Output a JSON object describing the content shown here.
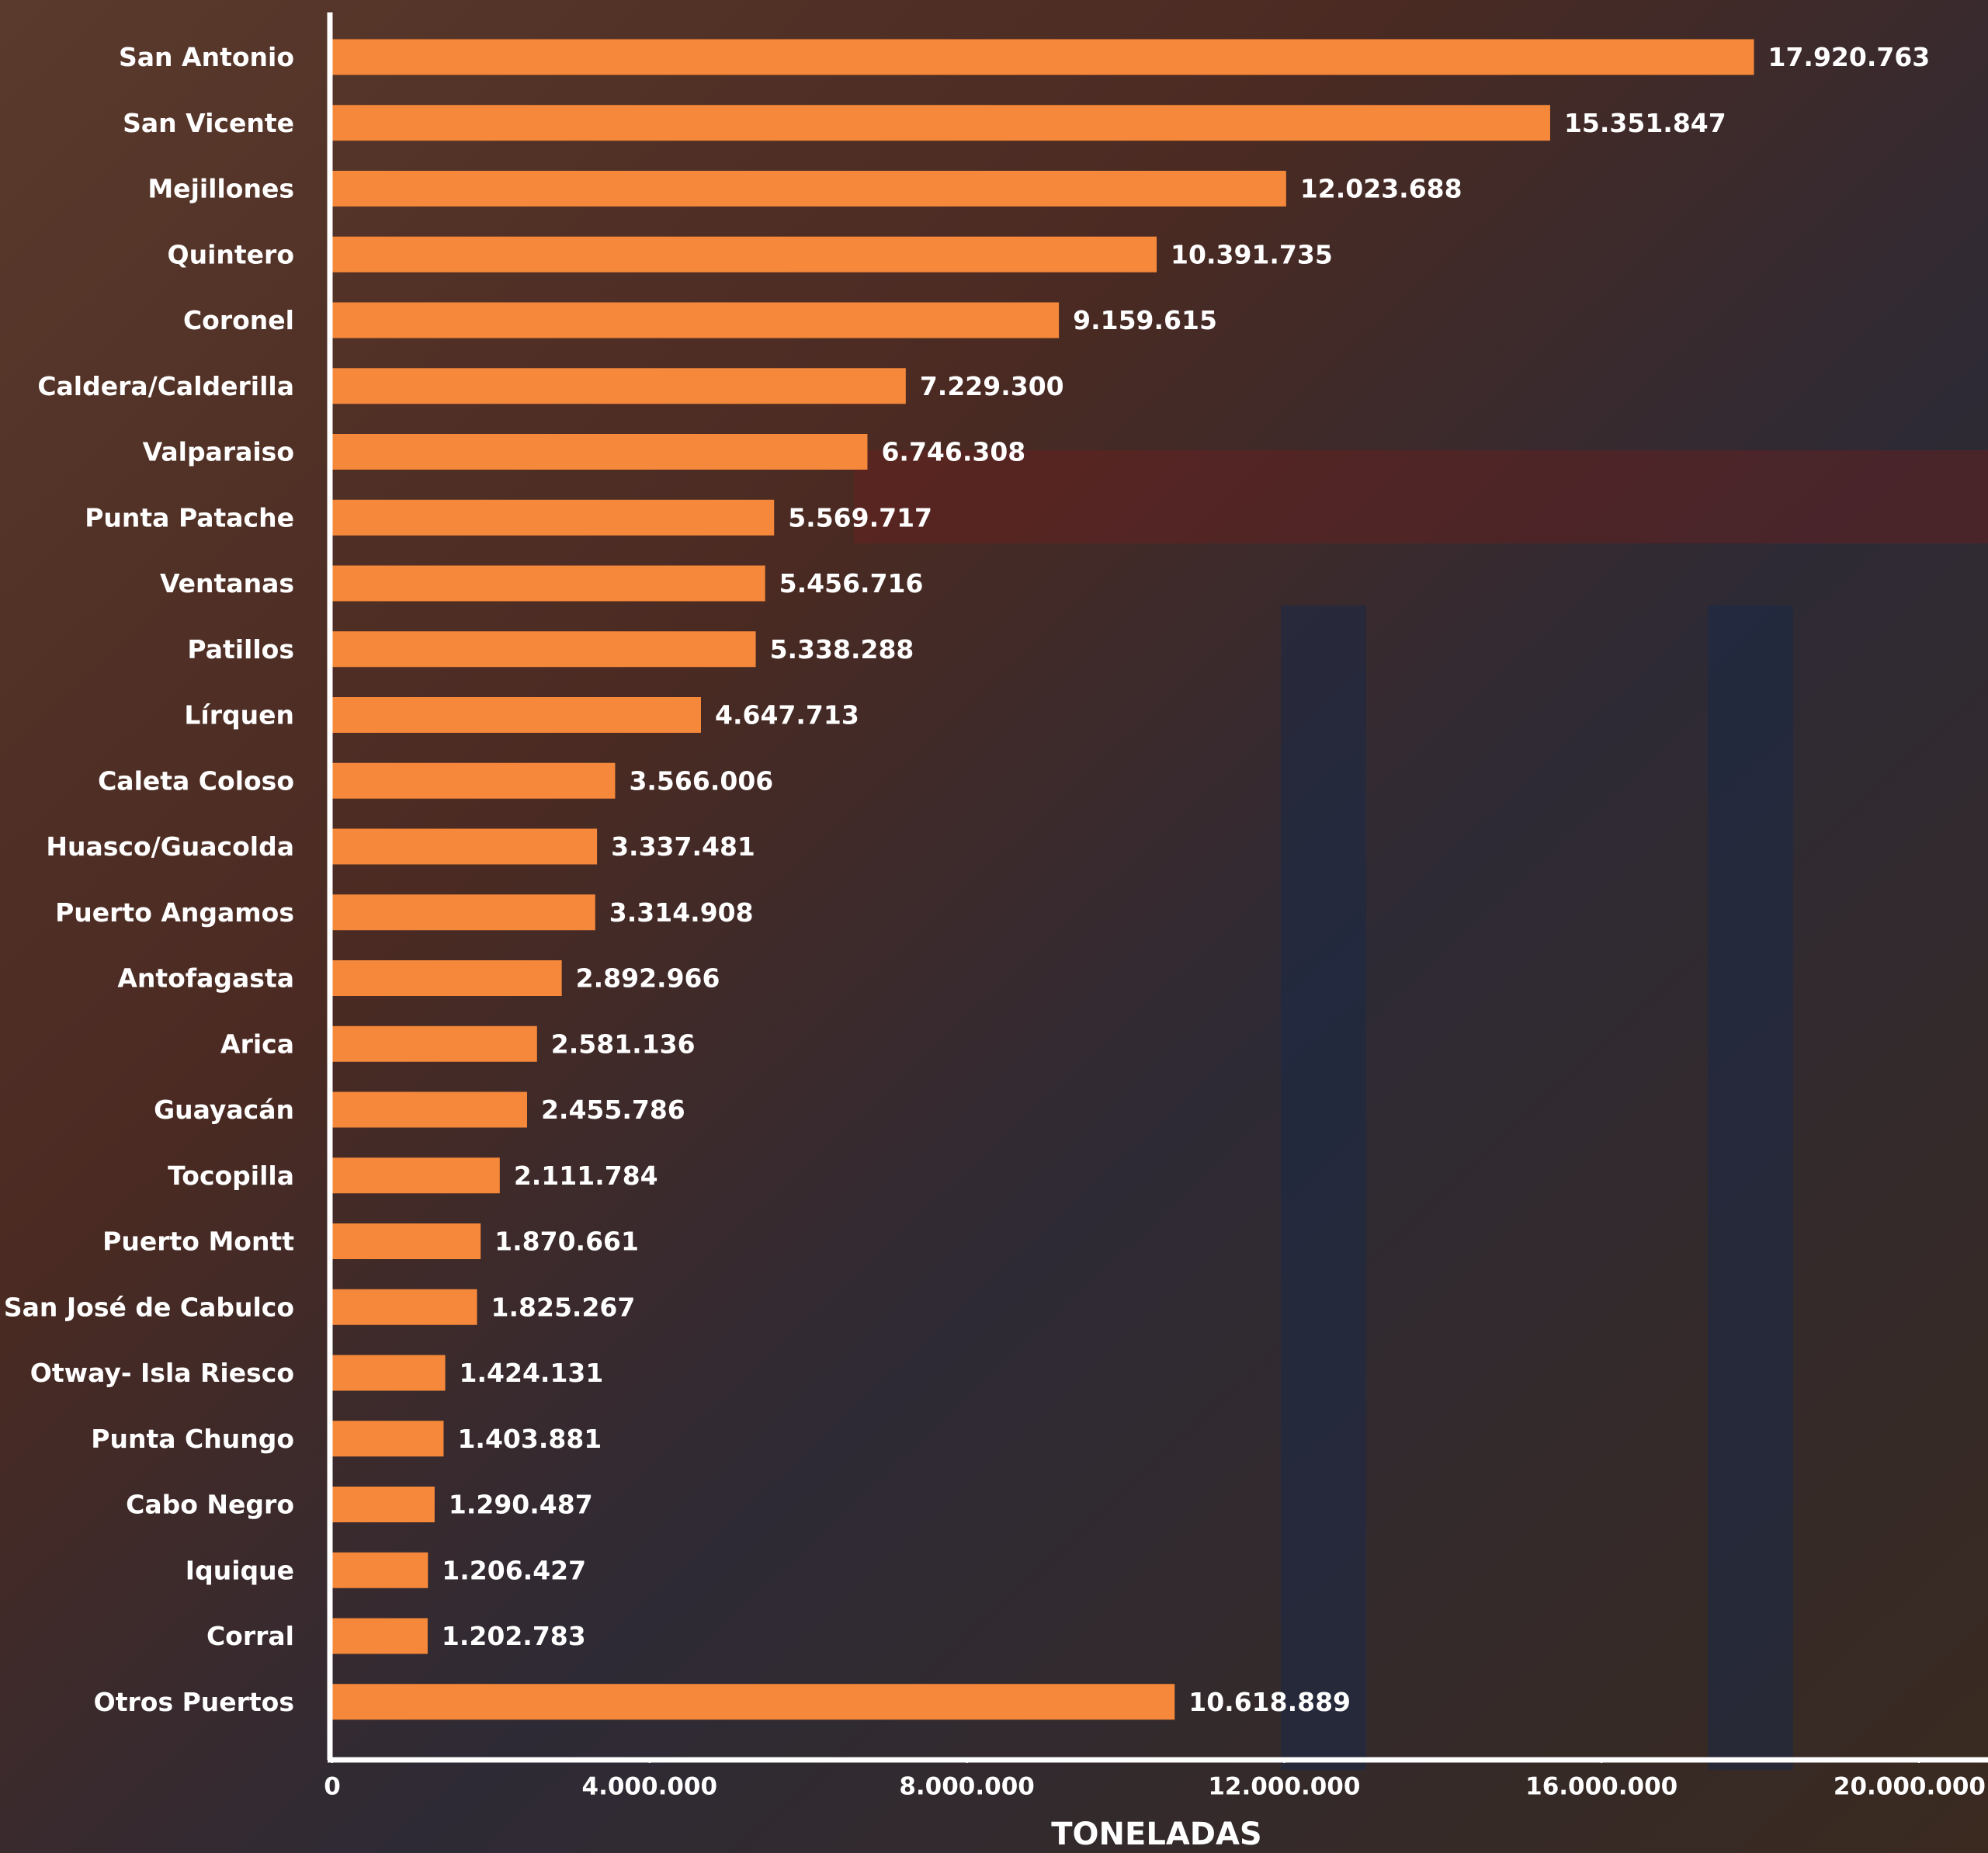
{
  "chart_data": {
    "type": "bar",
    "orientation": "horizontal",
    "categories": [
      "San Antonio",
      "San Vicente",
      "Mejillones",
      "Quintero",
      "Coronel",
      "Caldera/Calderilla",
      "Valparaiso",
      "Punta Patache",
      "Ventanas",
      "Patillos",
      "Lírquen",
      "Caleta Coloso",
      "Huasco/Guacolda",
      "Puerto Angamos",
      "Antofagasta",
      "Arica",
      "Guayacán",
      "Tocopilla",
      "Puerto Montt",
      "San José de Cabulco",
      "Otway- Isla Riesco",
      "Punta Chungo",
      "Cabo Negro",
      "Iquique",
      "Corral",
      "Otros Puertos"
    ],
    "values": [
      17920763,
      15351847,
      12023688,
      10391735,
      9159615,
      7229300,
      6746308,
      5569717,
      5456716,
      5338288,
      4647713,
      3566006,
      3337481,
      3314908,
      2892966,
      2581136,
      2455786,
      2111784,
      1870661,
      1825267,
      1424131,
      1403881,
      1290487,
      1206427,
      1202783,
      10618889
    ],
    "value_labels": [
      "17.920.763",
      "15.351.847",
      "12.023.688",
      "10.391.735",
      "9.159.615",
      "7.229.300",
      "6.746.308",
      "5.569.717",
      "5.456.716",
      "5.338.288",
      "4.647.713",
      "3.566.006",
      "3.337.481",
      "3.314.908",
      "2.892.966",
      "2.581.136",
      "2.455.786",
      "2.111.784",
      "1.870.661",
      "1.825.267",
      "1.424.131",
      "1.403.881",
      "1.290.487",
      "1.206.427",
      "1.202.783",
      "10.618.889"
    ],
    "color": "#f5883a",
    "xlabel": "TONELADAS",
    "xlim": [
      0,
      20000000
    ],
    "xticks": [
      0,
      {
        "value": 4000000,
        "label": "4.000.000"
      },
      {
        "value": 8000000,
        "label": "8.000.000"
      },
      {
        "value": 12000000,
        "label": "12.000.000"
      },
      {
        "value": 16000000,
        "label": "16.000.000"
      },
      {
        "value": 20000000,
        "label": "20.000.000"
      }
    ],
    "grid": false
  }
}
